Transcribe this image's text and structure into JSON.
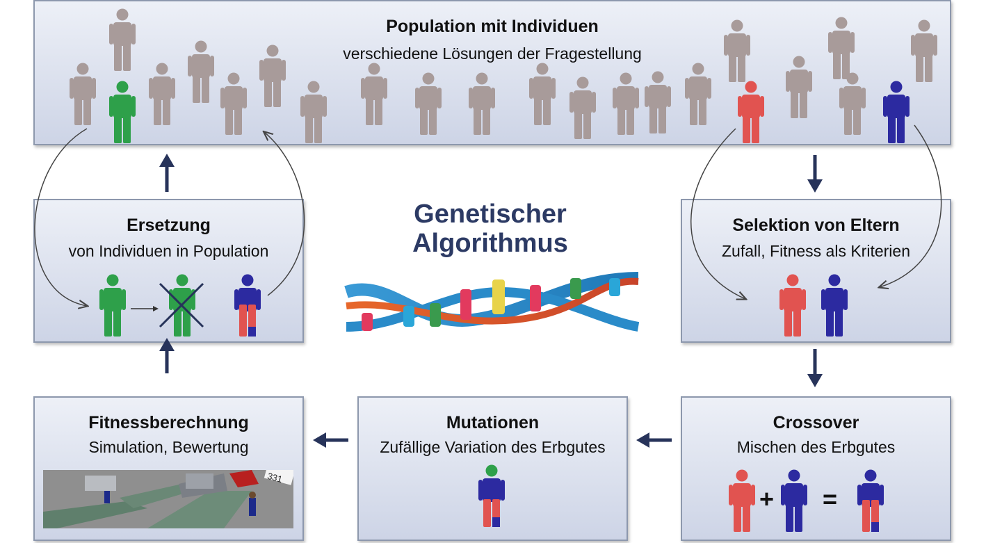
{
  "center_title": {
    "line1": "Genetischer",
    "line2": "Algorithmus"
  },
  "population": {
    "title": "Population mit Individuen",
    "subtitle": "verschiedene Lösungen der Fragestellung"
  },
  "ersetzung": {
    "title": "Ersetzung",
    "subtitle": "von Individuen in Population"
  },
  "selektion": {
    "title": "Selektion von Eltern",
    "subtitle": "Zufall, Fitness als Kriterien"
  },
  "fitness": {
    "title": "Fitnessberechnung",
    "subtitle": "Simulation, Bewertung",
    "sim_label": "331"
  },
  "mutationen": {
    "title": "Mutationen",
    "subtitle": "Zufällige Variation des Erbgutes"
  },
  "crossover": {
    "title": "Crossover",
    "subtitle": "Mischen des Erbgutes",
    "plus": "+",
    "equals": "="
  },
  "colors": {
    "gray": "#a89b9a",
    "green": "#2ea04a",
    "red": "#e15350",
    "blue": "#2c2aa0",
    "arrow": "#27335a",
    "box_border": "#8d98ad"
  }
}
